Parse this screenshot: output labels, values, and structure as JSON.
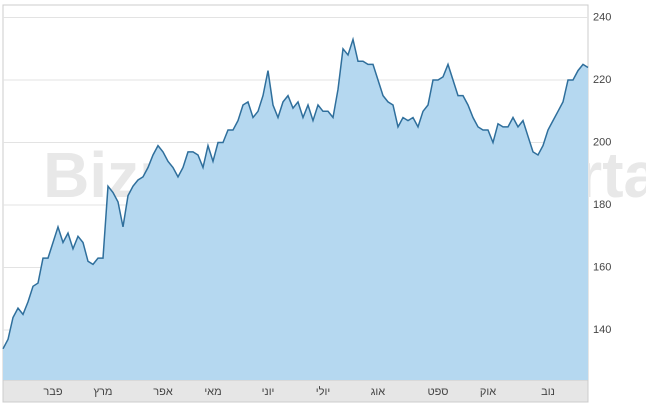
{
  "chart_data": {
    "type": "area",
    "watermark": "Bizportal",
    "categories": [
      null,
      null,
      null,
      null,
      null,
      null,
      null,
      null,
      null,
      null,
      "פבר",
      null,
      null,
      null,
      null,
      null,
      null,
      null,
      null,
      null,
      "מרץ",
      null,
      null,
      null,
      null,
      null,
      null,
      null,
      null,
      null,
      null,
      null,
      "אפר",
      null,
      null,
      null,
      null,
      null,
      null,
      null,
      null,
      null,
      "מאי",
      null,
      null,
      null,
      null,
      null,
      null,
      null,
      null,
      null,
      null,
      "יוני",
      null,
      null,
      null,
      null,
      null,
      null,
      null,
      null,
      null,
      null,
      "יולי",
      null,
      null,
      null,
      null,
      null,
      null,
      null,
      null,
      null,
      null,
      "אוג",
      null,
      null,
      null,
      null,
      null,
      null,
      null,
      null,
      null,
      null,
      null,
      "ספט",
      null,
      null,
      null,
      null,
      null,
      null,
      null,
      null,
      null,
      "אוק",
      null,
      null,
      null,
      null,
      null,
      null,
      null,
      null,
      null,
      null,
      null,
      "נוב",
      null,
      null,
      null,
      null,
      null,
      null,
      null,
      null
    ],
    "values": [
      134,
      137,
      144,
      147,
      145,
      149,
      154,
      155,
      163,
      163,
      168,
      173,
      168,
      171,
      166,
      170,
      168,
      162,
      161,
      163,
      163,
      186,
      184,
      181,
      173,
      183,
      186,
      188,
      189,
      192,
      196,
      199,
      197,
      194,
      192,
      189,
      192,
      197,
      197,
      196,
      192,
      199,
      194,
      200,
      200,
      204,
      204,
      207,
      212,
      213,
      208,
      210,
      215,
      223,
      212,
      208,
      213,
      215,
      211,
      213,
      208,
      212,
      207,
      212,
      210,
      210,
      208,
      217,
      230,
      228,
      233,
      226,
      226,
      225,
      225,
      220,
      215,
      213,
      212,
      205,
      208,
      207,
      208,
      205,
      210,
      212,
      220,
      220,
      221,
      225,
      220,
      215,
      215,
      212,
      208,
      205,
      204,
      204,
      200,
      206,
      205,
      205,
      208,
      205,
      207,
      202,
      197,
      196,
      199,
      204,
      207,
      210,
      213,
      220,
      220,
      223,
      225,
      224
    ],
    "color": "#2f6f9c",
    "fill": "#b5d8f0",
    "ylim": [
      124,
      244
    ],
    "yticks": [
      140,
      160,
      180,
      200,
      220,
      240
    ],
    "grid": true
  }
}
